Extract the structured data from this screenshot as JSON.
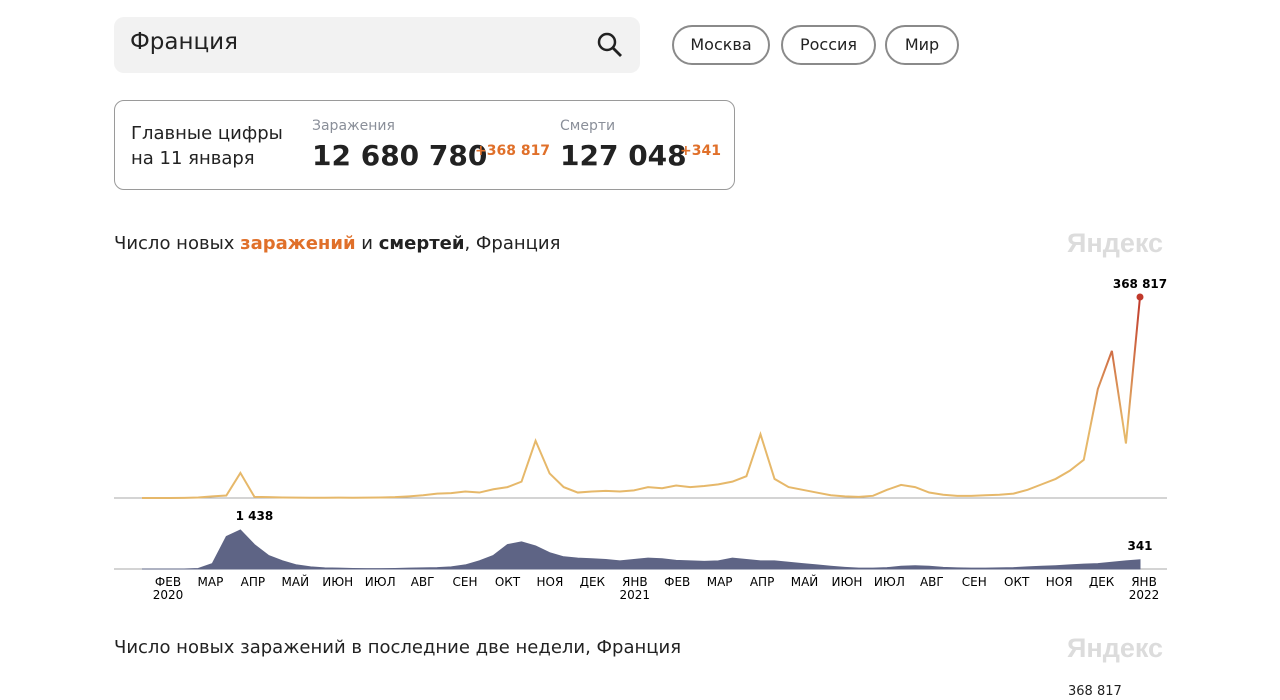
{
  "search": {
    "query": "Франция"
  },
  "regions": [
    "Москва",
    "Россия",
    "Мир"
  ],
  "summary": {
    "heading": [
      "Главные цифры",
      "на 11 января"
    ],
    "cases": {
      "label": "Заражения",
      "total": "12 680 780",
      "delta": "+368 817"
    },
    "deaths": {
      "label": "Смерти",
      "total": "127 048",
      "delta": "+341"
    }
  },
  "chart_data": {
    "type": "line",
    "title_parts": [
      "Число новых ",
      "заражений",
      " и ",
      "смертей",
      ", Франция"
    ],
    "logo": "Яндекс",
    "series": [
      {
        "color": "#e6b86a",
        "peak_color": "#c0392b",
        "values": [
          0,
          0,
          100,
          300,
          1000,
          3000,
          4500,
          46000,
          2000,
          1500,
          1000,
          700,
          500,
          400,
          600,
          500,
          700,
          1000,
          1500,
          3000,
          5000,
          8000,
          9000,
          12000,
          10000,
          16000,
          20000,
          30000,
          105000,
          45000,
          20000,
          10000,
          12000,
          13000,
          12000,
          14000,
          20000,
          18000,
          23000,
          20000,
          22000,
          25000,
          30000,
          40000,
          117000,
          35000,
          20000,
          15000,
          10000,
          5000,
          3000,
          2000,
          4000,
          15000,
          24000,
          20000,
          10000,
          6000,
          4000,
          4000,
          5000,
          6000,
          8000,
          15000,
          25000,
          35000,
          50000,
          70000,
          200000,
          270000,
          100000,
          368817
        ],
        "value_labels": {
          "71": "368 817"
        }
      },
      {
        "color": "#5e6485",
        "values": [
          0,
          0,
          0,
          0,
          20,
          200,
          1200,
          1438,
          900,
          500,
          300,
          150,
          80,
          40,
          30,
          20,
          15,
          15,
          20,
          30,
          40,
          50,
          80,
          150,
          300,
          500,
          900,
          1000,
          850,
          600,
          450,
          400,
          380,
          350,
          300,
          350,
          400,
          380,
          320,
          300,
          280,
          300,
          400,
          350,
          300,
          300,
          250,
          200,
          150,
          100,
          60,
          30,
          30,
          50,
          100,
          120,
          100,
          60,
          40,
          30,
          30,
          40,
          50,
          80,
          100,
          120,
          150,
          180,
          200,
          250,
          300,
          341
        ],
        "value_labels": {
          "7": "1 438",
          "71": "341"
        }
      }
    ],
    "months": [
      {
        "label": "ФЕВ",
        "year": "2020"
      },
      {
        "label": "МАР"
      },
      {
        "label": "АПР"
      },
      {
        "label": "МАЙ"
      },
      {
        "label": "ИЮН"
      },
      {
        "label": "ИЮЛ"
      },
      {
        "label": "АВГ"
      },
      {
        "label": "СЕН"
      },
      {
        "label": "ОКТ"
      },
      {
        "label": "НОЯ"
      },
      {
        "label": "ДЕК"
      },
      {
        "label": "ЯНВ",
        "year": "2021"
      },
      {
        "label": "ФЕВ"
      },
      {
        "label": "МАР"
      },
      {
        "label": "АПР"
      },
      {
        "label": "МАЙ"
      },
      {
        "label": "ИЮН"
      },
      {
        "label": "ИЮЛ"
      },
      {
        "label": "АВГ"
      },
      {
        "label": "СЕН"
      },
      {
        "label": "ОКТ"
      },
      {
        "label": "НОЯ"
      },
      {
        "label": "ДЕК"
      },
      {
        "label": "ЯНВ",
        "year": "2022"
      }
    ]
  },
  "chart2": {
    "title": "Число новых заражений в последние две недели, Франция",
    "logo": "Яндекс",
    "peak_label": "368 817"
  }
}
